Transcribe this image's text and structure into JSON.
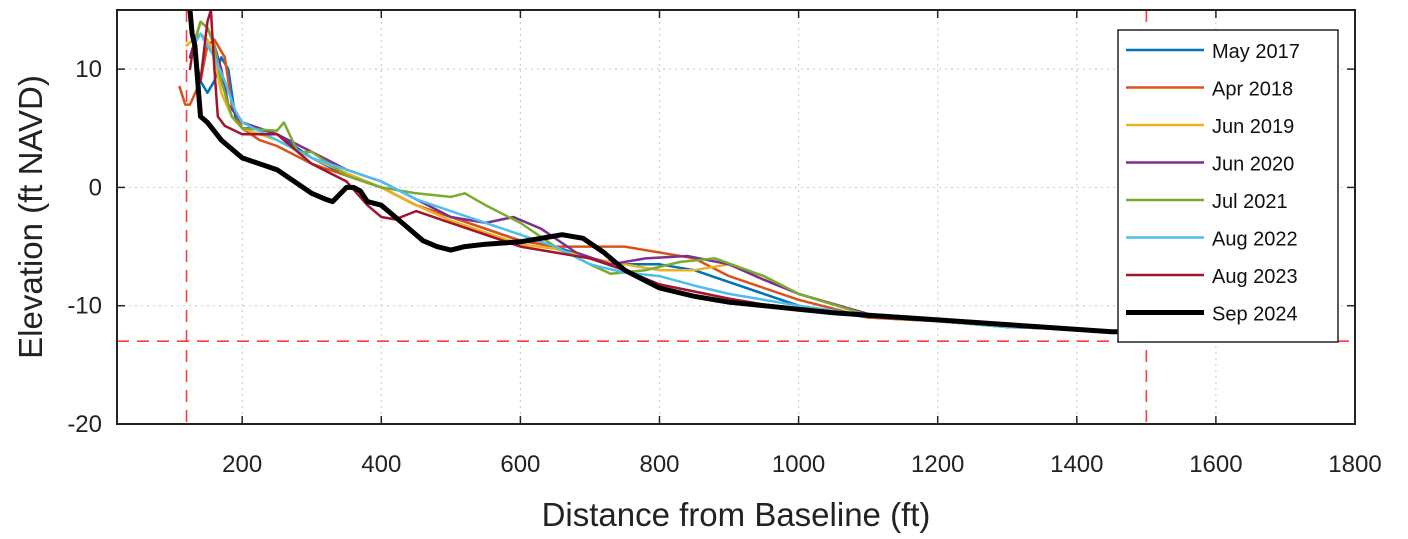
{
  "chart_data": {
    "type": "line",
    "xlabel": "Distance from Baseline (ft)",
    "ylabel": "Elevation (ft NAVD)",
    "xlim": [
      20,
      1800
    ],
    "ylim": [
      -20,
      15
    ],
    "xticks": [
      200,
      400,
      600,
      800,
      1000,
      1200,
      1400,
      1600,
      1800
    ],
    "yticks": [
      -20,
      -10,
      0,
      10
    ],
    "grid": true,
    "legend_position": "top-right",
    "reference_lines": [
      {
        "orientation": "vertical",
        "value": 120,
        "color": "#ff3b3b",
        "style": "dashed"
      },
      {
        "orientation": "vertical",
        "value": 1500,
        "color": "#ff3b3b",
        "style": "dashed"
      },
      {
        "orientation": "horizontal",
        "value": -13,
        "color": "#ff3b3b",
        "style": "dashed"
      }
    ],
    "series": [
      {
        "name": "May 2017",
        "color": "#0072bd",
        "width": 2.5,
        "x": [
          125,
          130,
          140,
          150,
          160,
          170,
          180,
          190,
          200,
          220,
          250,
          300,
          350,
          400,
          450,
          500,
          550,
          600,
          650,
          700,
          750,
          800,
          850,
          900,
          950,
          1000,
          1100,
          1200,
          1300,
          1400,
          1460
        ],
        "y": [
          11,
          12,
          9,
          8,
          9,
          11,
          10,
          6,
          5,
          5,
          4.5,
          2.5,
          1,
          0,
          -1.5,
          -2.5,
          -3.5,
          -4.5,
          -5,
          -6,
          -6.5,
          -6.5,
          -7,
          -8,
          -9,
          -10,
          -11,
          -11.3,
          -11.8,
          -12,
          -12.3
        ]
      },
      {
        "name": "Apr 2018",
        "color": "#d95319",
        "width": 2.5,
        "x": [
          110,
          118,
          125,
          140,
          150,
          160,
          175,
          185,
          200,
          225,
          250,
          300,
          350,
          400,
          450,
          500,
          550,
          600,
          650,
          700,
          750,
          800,
          850,
          900,
          950,
          1000,
          1100,
          1200,
          1300,
          1400,
          1460
        ],
        "y": [
          8.5,
          7,
          7,
          9,
          12,
          12.5,
          11,
          7,
          5,
          4,
          3.5,
          2,
          1,
          0,
          -1.5,
          -2.5,
          -3.5,
          -4.5,
          -5,
          -5,
          -5,
          -5.5,
          -6,
          -7.5,
          -8.5,
          -9.5,
          -11,
          -11.3,
          -11.8,
          -12,
          -12.3
        ]
      },
      {
        "name": "Jun 2019",
        "color": "#edb120",
        "width": 2.5,
        "x": [
          120,
          130,
          140,
          150,
          160,
          170,
          185,
          200,
          250,
          300,
          350,
          400,
          450,
          500,
          550,
          600,
          650,
          700,
          750,
          800,
          850,
          900,
          950,
          1000,
          1100,
          1200,
          1300,
          1400,
          1460
        ],
        "y": [
          12,
          12.5,
          13,
          12.5,
          11,
          8,
          6,
          5,
          4,
          2.5,
          1.2,
          0,
          -1.5,
          -2.8,
          -3.8,
          -4.8,
          -5.2,
          -6,
          -6.5,
          -7,
          -7,
          -6.5,
          -7.5,
          -9,
          -10.8,
          -11.3,
          -11.8,
          -12,
          -12.3
        ]
      },
      {
        "name": "Jun 2020",
        "color": "#7e2f8e",
        "width": 2.5,
        "x": [
          125,
          130,
          140,
          150,
          160,
          170,
          180,
          200,
          250,
          300,
          350,
          400,
          450,
          500,
          550,
          590,
          630,
          680,
          730,
          780,
          840,
          900,
          950,
          1000,
          1100,
          1200,
          1300,
          1400,
          1460
        ],
        "y": [
          11,
          12,
          14,
          13.5,
          12,
          10,
          7,
          5.5,
          4.5,
          3,
          1.5,
          0.5,
          -1,
          -2.5,
          -3,
          -2.5,
          -3.5,
          -5.5,
          -6.5,
          -6,
          -5.8,
          -6.5,
          -7.8,
          -9,
          -10.7,
          -11.2,
          -11.8,
          -12,
          -12.3
        ]
      },
      {
        "name": "Jul 2021",
        "color": "#77ac30",
        "width": 2.5,
        "x": [
          130,
          140,
          150,
          160,
          170,
          185,
          200,
          250,
          260,
          280,
          300,
          350,
          400,
          450,
          500,
          520,
          550,
          600,
          650,
          700,
          730,
          780,
          830,
          880,
          950,
          1000,
          1100,
          1200,
          1300,
          1400,
          1460
        ],
        "y": [
          12,
          14,
          13.5,
          12,
          9,
          6,
          5,
          4.8,
          5.5,
          3,
          3,
          1,
          0,
          -0.5,
          -0.8,
          -0.5,
          -1.5,
          -3,
          -5,
          -6.5,
          -7.3,
          -7,
          -6.3,
          -6,
          -7.5,
          -9,
          -10.8,
          -11.3,
          -11.8,
          -12,
          -12.3
        ]
      },
      {
        "name": "Aug 2022",
        "color": "#4dbeee",
        "width": 2.5,
        "x": [
          130,
          140,
          150,
          160,
          175,
          190,
          200,
          250,
          300,
          350,
          400,
          450,
          500,
          550,
          600,
          650,
          700,
          750,
          800,
          850,
          900,
          950,
          1000,
          1100,
          1200,
          1300,
          1400,
          1460
        ],
        "y": [
          12,
          13,
          12,
          11,
          9,
          6.5,
          5.5,
          4,
          2.5,
          1.5,
          0.5,
          -1,
          -2,
          -3,
          -4,
          -5,
          -6.5,
          -7.2,
          -7.5,
          -8.3,
          -9,
          -9.5,
          -10,
          -10.8,
          -11.3,
          -11.8,
          -12,
          -12.3
        ]
      },
      {
        "name": "Aug 2023",
        "color": "#a2142f",
        "width": 2.5,
        "x": [
          125,
          130,
          135,
          140,
          150,
          155,
          160,
          165,
          175,
          200,
          250,
          300,
          350,
          380,
          400,
          420,
          450,
          500,
          550,
          600,
          650,
          700,
          750,
          800,
          850,
          900,
          950,
          1000,
          1100,
          1200,
          1300,
          1400,
          1460
        ],
        "y": [
          10,
          12,
          10,
          9,
          14,
          15,
          10,
          6,
          5.2,
          4.5,
          4.5,
          2,
          0.5,
          -1.5,
          -2.5,
          -2.7,
          -2,
          -3,
          -4,
          -5,
          -5.5,
          -6,
          -7,
          -8.2,
          -8.8,
          -9.4,
          -9.9,
          -10.2,
          -10.8,
          -11.2,
          -11.7,
          -12,
          -12.3
        ]
      },
      {
        "name": "Sep 2024",
        "color": "#000000",
        "width": 5,
        "x": [
          125,
          128,
          132,
          140,
          150,
          170,
          200,
          250,
          300,
          320,
          330,
          345,
          350,
          360,
          370,
          380,
          400,
          430,
          460,
          480,
          500,
          520,
          550,
          600,
          640,
          660,
          690,
          720,
          750,
          800,
          850,
          900,
          950,
          1000,
          1050,
          1100,
          1150,
          1200,
          1250,
          1300,
          1350,
          1400,
          1450,
          1460
        ],
        "y": [
          15,
          13,
          12,
          6,
          5.5,
          4,
          2.5,
          1.5,
          -0.5,
          -1,
          -1.2,
          -0.3,
          0,
          0,
          -0.3,
          -1.2,
          -1.5,
          -3,
          -4.5,
          -5,
          -5.3,
          -5,
          -4.8,
          -4.6,
          -4.2,
          -4,
          -4.3,
          -5.5,
          -7,
          -8.5,
          -9.2,
          -9.7,
          -10,
          -10.3,
          -10.6,
          -10.8,
          -11,
          -11.2,
          -11.4,
          -11.6,
          -11.8,
          -12,
          -12.2,
          -12.2
        ]
      }
    ]
  }
}
